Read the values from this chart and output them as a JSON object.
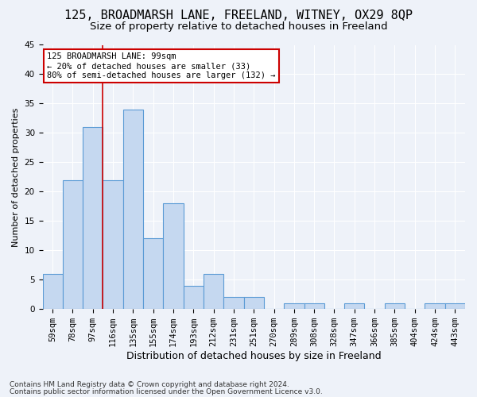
{
  "title": "125, BROADMARSH LANE, FREELAND, WITNEY, OX29 8QP",
  "subtitle": "Size of property relative to detached houses in Freeland",
  "xlabel": "Distribution of detached houses by size in Freeland",
  "ylabel": "Number of detached properties",
  "categories": [
    "59sqm",
    "78sqm",
    "97sqm",
    "116sqm",
    "135sqm",
    "155sqm",
    "174sqm",
    "193sqm",
    "212sqm",
    "231sqm",
    "251sqm",
    "270sqm",
    "289sqm",
    "308sqm",
    "328sqm",
    "347sqm",
    "366sqm",
    "385sqm",
    "404sqm",
    "424sqm",
    "443sqm"
  ],
  "values": [
    6,
    22,
    31,
    22,
    34,
    12,
    18,
    4,
    6,
    2,
    2,
    0,
    1,
    1,
    0,
    1,
    0,
    1,
    0,
    1,
    1
  ],
  "bar_color": "#c5d8f0",
  "bar_edge_color": "#5b9bd5",
  "ylim": [
    0,
    45
  ],
  "yticks": [
    0,
    5,
    10,
    15,
    20,
    25,
    30,
    35,
    40,
    45
  ],
  "vline_x": 2.5,
  "vline_color": "#cc0000",
  "annotation_text": "125 BROADMARSH LANE: 99sqm\n← 20% of detached houses are smaller (33)\n80% of semi-detached houses are larger (132) →",
  "annotation_box_color": "#ffffff",
  "annotation_box_edge": "#cc0000",
  "footer1": "Contains HM Land Registry data © Crown copyright and database right 2024.",
  "footer2": "Contains public sector information licensed under the Open Government Licence v3.0.",
  "background_color": "#eef2f9",
  "title_fontsize": 11,
  "subtitle_fontsize": 9.5,
  "xlabel_fontsize": 9,
  "ylabel_fontsize": 8,
  "tick_fontsize": 7.5,
  "footer_fontsize": 6.5
}
